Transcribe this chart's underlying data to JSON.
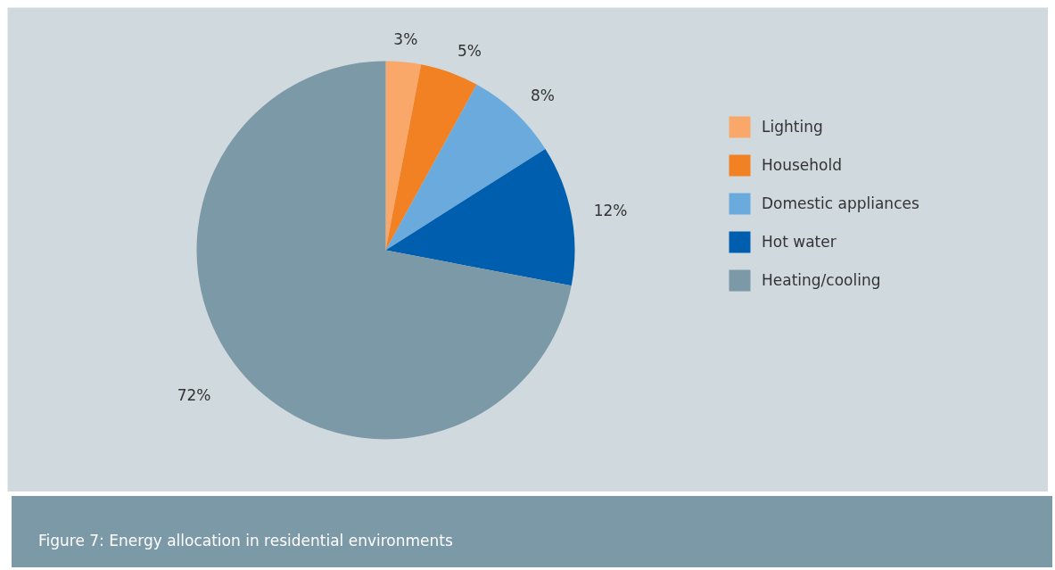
{
  "chart_data": {
    "type": "pie",
    "categories": [
      "Lighting",
      "Household",
      "Domestic appliances",
      "Hot water",
      "Heating/cooling"
    ],
    "values": [
      3,
      5,
      8,
      12,
      72
    ],
    "colors": [
      "#f9a86a",
      "#f28123",
      "#6aaadc",
      "#005eae",
      "#7c99a8"
    ],
    "value_labels": [
      "3%",
      "5%",
      "8%",
      "12%",
      "72%"
    ],
    "legend": "right",
    "annotations": [
      "Figure 7: Energy allocation in residential environments"
    ]
  }
}
